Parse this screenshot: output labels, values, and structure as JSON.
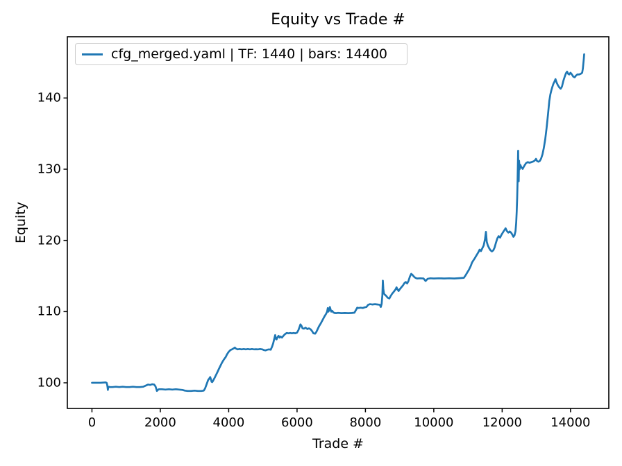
{
  "chart_data": {
    "type": "line",
    "title": "Equity vs Trade #",
    "xlabel": "Trade #",
    "ylabel": "Equity",
    "xlim": [
      -720,
      15120
    ],
    "ylim": [
      96.4,
      148.6
    ],
    "x_ticks": [
      0,
      2000,
      4000,
      6000,
      8000,
      10000,
      12000,
      14000
    ],
    "y_ticks": [
      100,
      110,
      120,
      130,
      140
    ],
    "grid": false,
    "legend_position": "upper left",
    "line_color": "#1f77b4",
    "axis_color": "#000000",
    "series": [
      {
        "name": "cfg_merged.yaml | TF: 1440 | bars: 14400",
        "points": [
          [
            0,
            100.0
          ],
          [
            120,
            100.0
          ],
          [
            250,
            100.0
          ],
          [
            400,
            100.05
          ],
          [
            430,
            100.0
          ],
          [
            445,
            99.7
          ],
          [
            455,
            99.4
          ],
          [
            465,
            99.0
          ],
          [
            475,
            99.3
          ],
          [
            490,
            99.45
          ],
          [
            520,
            99.4
          ],
          [
            600,
            99.4
          ],
          [
            700,
            99.45
          ],
          [
            800,
            99.4
          ],
          [
            900,
            99.45
          ],
          [
            1000,
            99.4
          ],
          [
            1100,
            99.4
          ],
          [
            1200,
            99.45
          ],
          [
            1300,
            99.4
          ],
          [
            1400,
            99.4
          ],
          [
            1500,
            99.45
          ],
          [
            1570,
            99.6
          ],
          [
            1640,
            99.75
          ],
          [
            1700,
            99.7
          ],
          [
            1760,
            99.8
          ],
          [
            1820,
            99.75
          ],
          [
            1860,
            99.5
          ],
          [
            1880,
            99.2
          ],
          [
            1900,
            98.85
          ],
          [
            1930,
            99.0
          ],
          [
            1960,
            99.1
          ],
          [
            2050,
            99.1
          ],
          [
            2150,
            99.05
          ],
          [
            2250,
            99.1
          ],
          [
            2350,
            99.05
          ],
          [
            2450,
            99.1
          ],
          [
            2550,
            99.05
          ],
          [
            2650,
            99.0
          ],
          [
            2720,
            98.9
          ],
          [
            2800,
            98.85
          ],
          [
            2900,
            98.85
          ],
          [
            3000,
            98.9
          ],
          [
            3100,
            98.85
          ],
          [
            3200,
            98.85
          ],
          [
            3270,
            98.9
          ],
          [
            3310,
            99.2
          ],
          [
            3340,
            99.6
          ],
          [
            3370,
            100.0
          ],
          [
            3400,
            100.4
          ],
          [
            3430,
            100.6
          ],
          [
            3460,
            100.8
          ],
          [
            3480,
            100.5
          ],
          [
            3500,
            100.15
          ],
          [
            3520,
            100.1
          ],
          [
            3550,
            100.35
          ],
          [
            3590,
            100.7
          ],
          [
            3630,
            101.1
          ],
          [
            3670,
            101.5
          ],
          [
            3710,
            101.9
          ],
          [
            3750,
            102.3
          ],
          [
            3800,
            102.8
          ],
          [
            3850,
            103.2
          ],
          [
            3880,
            103.4
          ],
          [
            3910,
            103.6
          ],
          [
            3950,
            104.0
          ],
          [
            4000,
            104.35
          ],
          [
            4050,
            104.6
          ],
          [
            4100,
            104.7
          ],
          [
            4150,
            104.85
          ],
          [
            4180,
            104.95
          ],
          [
            4210,
            104.8
          ],
          [
            4260,
            104.7
          ],
          [
            4320,
            104.75
          ],
          [
            4380,
            104.7
          ],
          [
            4440,
            104.75
          ],
          [
            4500,
            104.7
          ],
          [
            4560,
            104.75
          ],
          [
            4620,
            104.7
          ],
          [
            4680,
            104.75
          ],
          [
            4740,
            104.7
          ],
          [
            4800,
            104.72
          ],
          [
            4860,
            104.7
          ],
          [
            4920,
            104.75
          ],
          [
            4980,
            104.7
          ],
          [
            5030,
            104.6
          ],
          [
            5080,
            104.55
          ],
          [
            5130,
            104.65
          ],
          [
            5180,
            104.7
          ],
          [
            5230,
            104.65
          ],
          [
            5270,
            105.1
          ],
          [
            5300,
            105.5
          ],
          [
            5320,
            105.9
          ],
          [
            5340,
            106.3
          ],
          [
            5360,
            106.7
          ],
          [
            5380,
            106.2
          ],
          [
            5400,
            106.1
          ],
          [
            5430,
            106.4
          ],
          [
            5460,
            106.6
          ],
          [
            5490,
            106.35
          ],
          [
            5520,
            106.5
          ],
          [
            5560,
            106.35
          ],
          [
            5600,
            106.6
          ],
          [
            5650,
            106.85
          ],
          [
            5700,
            107.0
          ],
          [
            5750,
            106.95
          ],
          [
            5800,
            107.0
          ],
          [
            5850,
            106.95
          ],
          [
            5900,
            107.0
          ],
          [
            5950,
            106.95
          ],
          [
            6000,
            107.05
          ],
          [
            6040,
            107.4
          ],
          [
            6070,
            107.8
          ],
          [
            6100,
            108.2
          ],
          [
            6130,
            108.0
          ],
          [
            6160,
            107.65
          ],
          [
            6200,
            107.6
          ],
          [
            6250,
            107.75
          ],
          [
            6300,
            107.55
          ],
          [
            6350,
            107.65
          ],
          [
            6400,
            107.5
          ],
          [
            6440,
            107.25
          ],
          [
            6480,
            106.95
          ],
          [
            6530,
            106.9
          ],
          [
            6570,
            107.2
          ],
          [
            6610,
            107.6
          ],
          [
            6650,
            108.0
          ],
          [
            6700,
            108.4
          ],
          [
            6750,
            108.85
          ],
          [
            6800,
            109.3
          ],
          [
            6850,
            109.7
          ],
          [
            6880,
            110.0
          ],
          [
            6900,
            110.5
          ],
          [
            6915,
            110.0
          ],
          [
            6940,
            110.2
          ],
          [
            6960,
            110.65
          ],
          [
            6980,
            110.3
          ],
          [
            7000,
            110.0
          ],
          [
            7030,
            110.1
          ],
          [
            7060,
            109.9
          ],
          [
            7100,
            109.8
          ],
          [
            7150,
            109.78
          ],
          [
            7200,
            109.82
          ],
          [
            7300,
            109.78
          ],
          [
            7400,
            109.8
          ],
          [
            7500,
            109.78
          ],
          [
            7600,
            109.8
          ],
          [
            7680,
            109.85
          ],
          [
            7720,
            110.2
          ],
          [
            7760,
            110.55
          ],
          [
            7800,
            110.5
          ],
          [
            7860,
            110.55
          ],
          [
            7920,
            110.5
          ],
          [
            7980,
            110.6
          ],
          [
            8030,
            110.65
          ],
          [
            8080,
            110.95
          ],
          [
            8130,
            111.05
          ],
          [
            8200,
            111.0
          ],
          [
            8280,
            111.05
          ],
          [
            8360,
            111.0
          ],
          [
            8420,
            110.95
          ],
          [
            8450,
            110.65
          ],
          [
            8475,
            111.1
          ],
          [
            8495,
            112.3
          ],
          [
            8510,
            114.35
          ],
          [
            8525,
            113.2
          ],
          [
            8540,
            112.6
          ],
          [
            8560,
            112.4
          ],
          [
            8600,
            112.25
          ],
          [
            8650,
            111.95
          ],
          [
            8700,
            111.85
          ],
          [
            8740,
            112.2
          ],
          [
            8780,
            112.5
          ],
          [
            8830,
            112.8
          ],
          [
            8880,
            113.1
          ],
          [
            8910,
            113.4
          ],
          [
            8940,
            113.1
          ],
          [
            8970,
            112.9
          ],
          [
            9000,
            113.1
          ],
          [
            9050,
            113.4
          ],
          [
            9100,
            113.7
          ],
          [
            9140,
            114.0
          ],
          [
            9180,
            114.15
          ],
          [
            9220,
            113.95
          ],
          [
            9260,
            114.3
          ],
          [
            9300,
            114.9
          ],
          [
            9340,
            115.3
          ],
          [
            9380,
            115.15
          ],
          [
            9420,
            114.9
          ],
          [
            9460,
            114.75
          ],
          [
            9510,
            114.65
          ],
          [
            9600,
            114.68
          ],
          [
            9700,
            114.65
          ],
          [
            9760,
            114.3
          ],
          [
            9820,
            114.6
          ],
          [
            9900,
            114.68
          ],
          [
            10000,
            114.65
          ],
          [
            10150,
            114.68
          ],
          [
            10300,
            114.65
          ],
          [
            10450,
            114.68
          ],
          [
            10600,
            114.65
          ],
          [
            10750,
            114.7
          ],
          [
            10880,
            114.75
          ],
          [
            10930,
            115.1
          ],
          [
            10980,
            115.5
          ],
          [
            11030,
            115.9
          ],
          [
            11080,
            116.4
          ],
          [
            11120,
            116.9
          ],
          [
            11160,
            117.2
          ],
          [
            11200,
            117.5
          ],
          [
            11250,
            117.9
          ],
          [
            11300,
            118.3
          ],
          [
            11340,
            118.7
          ],
          [
            11380,
            118.5
          ],
          [
            11420,
            118.9
          ],
          [
            11460,
            119.3
          ],
          [
            11500,
            120.2
          ],
          [
            11525,
            121.2
          ],
          [
            11550,
            119.8
          ],
          [
            11580,
            119.3
          ],
          [
            11620,
            118.9
          ],
          [
            11660,
            118.6
          ],
          [
            11700,
            118.45
          ],
          [
            11740,
            118.6
          ],
          [
            11780,
            119.0
          ],
          [
            11820,
            119.7
          ],
          [
            11860,
            120.3
          ],
          [
            11900,
            120.6
          ],
          [
            11940,
            120.4
          ],
          [
            11980,
            120.8
          ],
          [
            12020,
            121.1
          ],
          [
            12060,
            121.4
          ],
          [
            12100,
            121.7
          ],
          [
            12140,
            121.3
          ],
          [
            12180,
            121.1
          ],
          [
            12220,
            121.25
          ],
          [
            12260,
            121.1
          ],
          [
            12300,
            120.8
          ],
          [
            12330,
            120.5
          ],
          [
            12360,
            120.7
          ],
          [
            12390,
            121.3
          ],
          [
            12410,
            122.5
          ],
          [
            12425,
            124.0
          ],
          [
            12440,
            126.0
          ],
          [
            12450,
            128.0
          ],
          [
            12460,
            130.5
          ],
          [
            12468,
            132.6
          ],
          [
            12476,
            129.5
          ],
          [
            12484,
            128.3
          ],
          [
            12495,
            131.2
          ],
          [
            12510,
            130.0
          ],
          [
            12530,
            130.6
          ],
          [
            12560,
            130.3
          ],
          [
            12600,
            130.05
          ],
          [
            12650,
            130.5
          ],
          [
            12700,
            130.85
          ],
          [
            12750,
            131.0
          ],
          [
            12800,
            130.9
          ],
          [
            12860,
            131.0
          ],
          [
            12920,
            131.1
          ],
          [
            12960,
            131.25
          ],
          [
            12990,
            131.45
          ],
          [
            13020,
            131.15
          ],
          [
            13060,
            131.05
          ],
          [
            13100,
            131.15
          ],
          [
            13140,
            131.5
          ],
          [
            13180,
            132.1
          ],
          [
            13220,
            133.0
          ],
          [
            13260,
            134.2
          ],
          [
            13300,
            135.8
          ],
          [
            13340,
            137.6
          ],
          [
            13380,
            139.6
          ],
          [
            13410,
            140.5
          ],
          [
            13440,
            141.1
          ],
          [
            13470,
            141.6
          ],
          [
            13500,
            142.0
          ],
          [
            13530,
            142.3
          ],
          [
            13560,
            142.65
          ],
          [
            13590,
            142.2
          ],
          [
            13630,
            141.8
          ],
          [
            13670,
            141.5
          ],
          [
            13710,
            141.3
          ],
          [
            13750,
            141.6
          ],
          [
            13790,
            142.4
          ],
          [
            13830,
            143.0
          ],
          [
            13870,
            143.5
          ],
          [
            13900,
            143.7
          ],
          [
            13930,
            143.4
          ],
          [
            13960,
            143.3
          ],
          [
            14000,
            143.55
          ],
          [
            14040,
            143.3
          ],
          [
            14080,
            143.0
          ],
          [
            14120,
            142.9
          ],
          [
            14160,
            143.15
          ],
          [
            14200,
            143.3
          ],
          [
            14250,
            143.3
          ],
          [
            14300,
            143.4
          ],
          [
            14340,
            143.55
          ],
          [
            14360,
            144.1
          ],
          [
            14375,
            144.8
          ],
          [
            14388,
            145.5
          ],
          [
            14400,
            146.15
          ]
        ]
      }
    ]
  }
}
